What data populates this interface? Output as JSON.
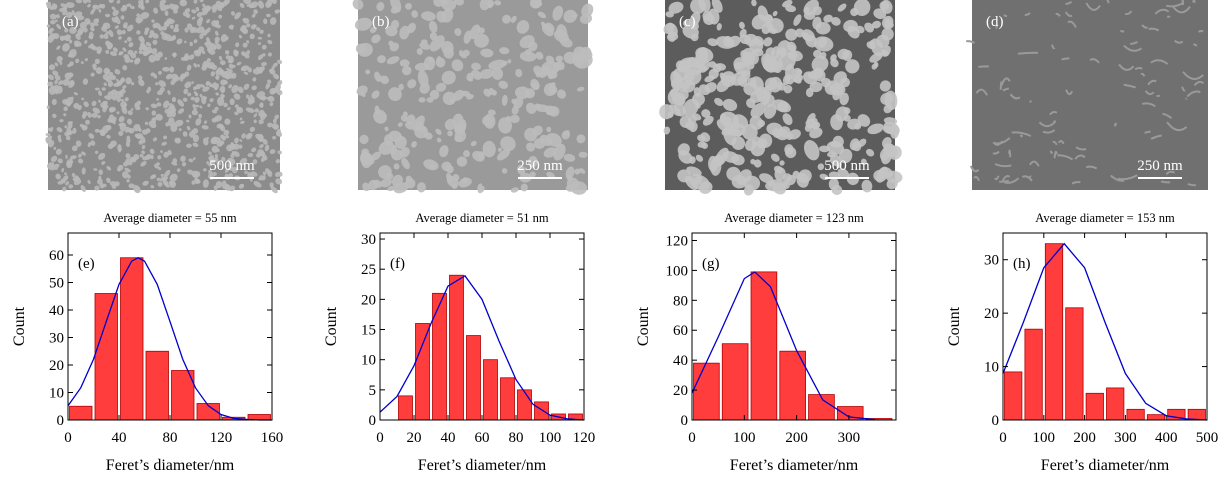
{
  "images": [
    {
      "label": "(a)",
      "scale_bar": "500 nm"
    },
    {
      "label": "(b)",
      "scale_bar": "250 nm"
    },
    {
      "label": "(c)",
      "scale_bar": "500 nm"
    },
    {
      "label": "(d)",
      "scale_bar": "250 nm"
    }
  ],
  "chart_data": [
    {
      "type": "histogram",
      "title": "Average diameter = 55 nm",
      "panel_label": "(e)",
      "xlabel": "Feret’s diameter/nm",
      "ylabel": "Count",
      "bins": [
        0,
        20,
        40,
        60,
        80,
        100,
        120,
        140,
        160
      ],
      "counts": [
        5,
        46,
        59,
        25,
        18,
        6,
        1,
        2
      ],
      "color": "#ff3d3d",
      "xlim": [
        0,
        160
      ],
      "xticks": [
        0,
        40,
        80,
        120,
        160
      ],
      "ylim": [
        0,
        68
      ],
      "yticks": [
        0,
        10,
        20,
        30,
        40,
        50,
        60
      ],
      "series": [
        {
          "type": "line",
          "color": "#0000cc",
          "x": [
            0,
            10,
            20,
            30,
            40,
            50,
            55,
            60,
            70,
            80,
            90,
            100,
            110,
            120,
            130,
            140,
            150,
            160
          ],
          "values": [
            5.2,
            11.7,
            22.1,
            35.8,
            49.3,
            57.8,
            59,
            57.8,
            49.3,
            35.8,
            22.1,
            11.7,
            5.2,
            2.0,
            0.6,
            0.2,
            0,
            0
          ]
        }
      ]
    },
    {
      "type": "histogram",
      "title": "Average diameter = 51 nm",
      "panel_label": "(f)",
      "xlabel": "Feret’s diameter/nm",
      "ylabel": "Count",
      "bins": [
        10,
        20,
        30,
        40,
        50,
        60,
        70,
        80,
        90,
        100,
        110,
        120
      ],
      "counts": [
        4,
        16,
        21,
        24,
        14,
        10,
        7,
        5,
        3,
        1,
        1
      ],
      "color": "#ff3d3d",
      "xlim": [
        0,
        120
      ],
      "xticks": [
        0,
        20,
        40,
        60,
        80,
        100,
        120
      ],
      "ylim": [
        0,
        31
      ],
      "yticks": [
        0,
        5,
        10,
        15,
        20,
        25,
        30
      ],
      "series": [
        {
          "type": "line",
          "color": "#0000cc",
          "x": [
            0,
            10,
            20,
            30,
            40,
            50,
            60,
            70,
            80,
            90,
            100,
            110,
            120
          ],
          "values": [
            1.3,
            3.9,
            9.0,
            16.0,
            22.2,
            23.9,
            20.0,
            13.1,
            6.7,
            2.6,
            0.8,
            0.2,
            0
          ]
        }
      ]
    },
    {
      "type": "histogram",
      "title": "Average diameter = 123 nm",
      "panel_label": "(g)",
      "xlabel": "Feret’s diameter/nm",
      "ylabel": "Count",
      "bins": [
        0,
        55,
        110,
        165,
        220,
        275,
        330,
        385
      ],
      "counts": [
        38,
        51,
        99,
        46,
        17,
        9,
        1
      ],
      "color": "#ff3d3d",
      "xlim": [
        0,
        390
      ],
      "xticks": [
        0,
        100,
        200,
        300
      ],
      "ylim": [
        0,
        125
      ],
      "yticks": [
        0,
        20,
        40,
        60,
        80,
        100,
        120
      ],
      "series": [
        {
          "type": "line",
          "color": "#0000cc",
          "x": [
            0,
            50,
            100,
            120,
            150,
            200,
            250,
            300,
            350
          ],
          "values": [
            18.0,
            55.4,
            94.5,
            99,
            89.1,
            46.4,
            13.4,
            2.1,
            0.2
          ]
        }
      ]
    },
    {
      "type": "histogram",
      "title": "Average diameter = 153 nm",
      "panel_label": "(h)",
      "xlabel": "Feret’s diameter/nm",
      "ylabel": "Count",
      "bins": [
        0,
        50,
        100,
        150,
        200,
        250,
        300,
        350,
        400,
        450,
        500
      ],
      "counts": [
        9,
        17,
        33,
        21,
        5,
        6,
        2,
        1,
        2,
        2
      ],
      "color": "#ff3d3d",
      "xlim": [
        0,
        500
      ],
      "xticks": [
        0,
        100,
        200,
        300,
        400,
        500
      ],
      "ylim": [
        0,
        35
      ],
      "yticks": [
        0,
        10,
        20,
        30
      ],
      "series": [
        {
          "type": "line",
          "color": "#0000cc",
          "x": [
            0,
            50,
            100,
            150,
            200,
            250,
            300,
            350,
            400,
            450,
            500
          ],
          "values": [
            8.7,
            18.3,
            28.5,
            33,
            28.5,
            18.3,
            8.7,
            3.1,
            0.8,
            0.2,
            0
          ]
        }
      ]
    }
  ]
}
